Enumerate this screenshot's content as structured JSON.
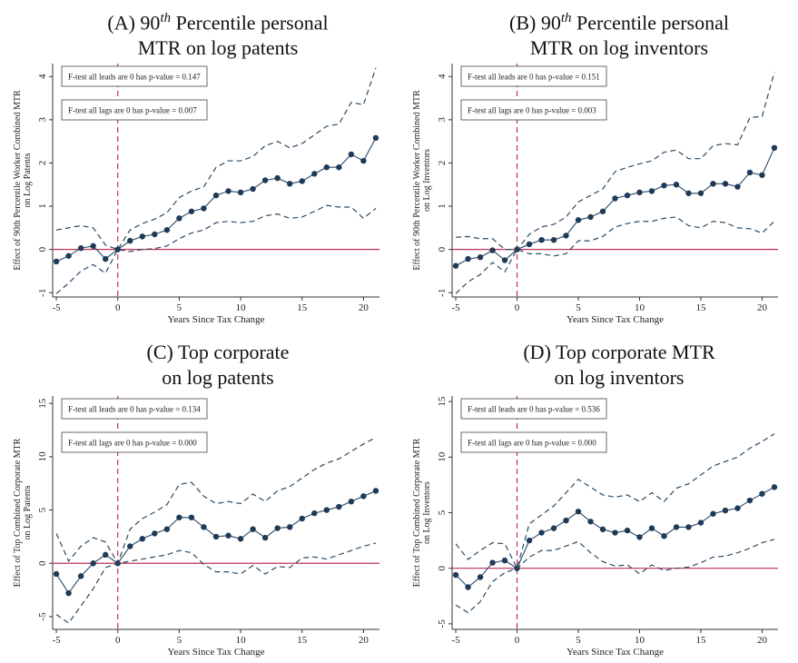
{
  "chart_data": [
    {
      "type": "line",
      "title_prefix": "(A)  90",
      "title_sup": "th",
      "title_rest": " Percentile personal",
      "title_line2": "MTR on log patents",
      "ylabel_lines": [
        "Effect of 90th Percentile Worker Combined MTR",
        "on Log Patents"
      ],
      "xlabel": "Years Since Tax Change",
      "xlim": [
        -5.3,
        21.3
      ],
      "ylim": [
        -1.1,
        4.3
      ],
      "xticks": [
        -5,
        0,
        5,
        10,
        15,
        20
      ],
      "yticks": [
        -1,
        0,
        1,
        2,
        3,
        4
      ],
      "ftests": [
        "F-test all leads are 0 has p-value = 0.147",
        "F-test all lags are 0 has p-value = 0.007"
      ],
      "x": [
        -5,
        -4,
        -3,
        -2,
        -1,
        0,
        1,
        2,
        3,
        4,
        5,
        6,
        7,
        8,
        9,
        10,
        11,
        12,
        13,
        14,
        15,
        16,
        17,
        18,
        19,
        20,
        21
      ],
      "series": [
        {
          "role": "estimate",
          "values": [
            -0.28,
            -0.15,
            0.03,
            0.08,
            -0.22,
            0.0,
            0.2,
            0.3,
            0.35,
            0.45,
            0.72,
            0.88,
            0.95,
            1.25,
            1.35,
            1.32,
            1.4,
            1.6,
            1.65,
            1.52,
            1.58,
            1.75,
            1.9,
            1.9,
            2.2,
            2.05,
            2.58
          ]
        },
        {
          "role": "upper",
          "values": [
            0.45,
            0.5,
            0.55,
            0.5,
            0.1,
            0.0,
            0.45,
            0.6,
            0.7,
            0.85,
            1.2,
            1.35,
            1.45,
            1.9,
            2.05,
            2.05,
            2.15,
            2.4,
            2.5,
            2.35,
            2.45,
            2.65,
            2.85,
            2.9,
            3.4,
            3.35,
            4.2
          ]
        },
        {
          "role": "lower",
          "values": [
            -1.02,
            -0.78,
            -0.5,
            -0.35,
            -0.55,
            0.0,
            -0.05,
            0.0,
            0.02,
            0.08,
            0.25,
            0.38,
            0.45,
            0.62,
            0.65,
            0.62,
            0.65,
            0.78,
            0.82,
            0.72,
            0.75,
            0.88,
            1.02,
            0.98,
            0.98,
            0.72,
            0.95
          ]
        }
      ]
    },
    {
      "type": "line",
      "title_prefix": "(B)  90",
      "title_sup": "th",
      "title_rest": " Percentile personal",
      "title_line2": "MTR on log inventors",
      "ylabel_lines": [
        "Effect of 90th Percentile Worker Combined MTR",
        "on Log Inventors"
      ],
      "xlabel": "Years Since Tax Change",
      "xlim": [
        -5.3,
        21.3
      ],
      "ylim": [
        -1.1,
        4.3
      ],
      "xticks": [
        -5,
        0,
        5,
        10,
        15,
        20
      ],
      "yticks": [
        -1,
        0,
        1,
        2,
        3,
        4
      ],
      "ftests": [
        "F-test all leads are 0 has p-value = 0.151",
        "F-test all lags are 0 has p-value = 0.003"
      ],
      "x": [
        -5,
        -4,
        -3,
        -2,
        -1,
        0,
        1,
        2,
        3,
        4,
        5,
        6,
        7,
        8,
        9,
        10,
        11,
        12,
        13,
        14,
        15,
        16,
        17,
        18,
        19,
        20,
        21
      ],
      "series": [
        {
          "role": "estimate",
          "values": [
            -0.38,
            -0.22,
            -0.18,
            -0.02,
            -0.25,
            0.0,
            0.12,
            0.22,
            0.22,
            0.32,
            0.68,
            0.75,
            0.88,
            1.18,
            1.25,
            1.32,
            1.35,
            1.48,
            1.5,
            1.3,
            1.3,
            1.52,
            1.52,
            1.45,
            1.78,
            1.72,
            2.35
          ]
        },
        {
          "role": "upper",
          "values": [
            0.28,
            0.3,
            0.25,
            0.25,
            0.0,
            0.0,
            0.35,
            0.52,
            0.58,
            0.75,
            1.1,
            1.25,
            1.4,
            1.8,
            1.9,
            1.98,
            2.05,
            2.25,
            2.3,
            2.1,
            2.1,
            2.4,
            2.45,
            2.42,
            3.05,
            3.08,
            4.1
          ]
        },
        {
          "role": "lower",
          "values": [
            -1.02,
            -0.75,
            -0.58,
            -0.3,
            -0.52,
            0.0,
            -0.1,
            -0.1,
            -0.15,
            -0.1,
            0.2,
            0.2,
            0.3,
            0.52,
            0.6,
            0.65,
            0.65,
            0.72,
            0.75,
            0.55,
            0.5,
            0.65,
            0.62,
            0.5,
            0.48,
            0.38,
            0.65
          ]
        }
      ]
    },
    {
      "type": "line",
      "title_prefix": "(C)  Top corporate",
      "title_sup": "",
      "title_rest": "",
      "title_line2": "on log patents",
      "ylabel_lines": [
        "Effect of Top Combined Corporate MTR",
        "on Log Patents"
      ],
      "xlabel": "Years Since Tax Change",
      "xlim": [
        -5.3,
        21.3
      ],
      "ylim": [
        -6.2,
        15.7
      ],
      "xticks": [
        -5,
        0,
        5,
        10,
        15,
        20
      ],
      "yticks": [
        -5,
        0,
        5,
        10,
        15
      ],
      "ftests": [
        "F-test all leads are 0 has p-value = 0.134",
        "F-test all lags are 0 has p-value = 0.000"
      ],
      "x": [
        -5,
        -4,
        -3,
        -2,
        -1,
        0,
        1,
        2,
        3,
        4,
        5,
        6,
        7,
        8,
        9,
        10,
        11,
        12,
        13,
        14,
        15,
        16,
        17,
        18,
        19,
        20,
        21
      ],
      "series": [
        {
          "role": "estimate",
          "values": [
            -1.0,
            -2.8,
            -1.2,
            0.0,
            0.8,
            0.0,
            1.6,
            2.3,
            2.8,
            3.2,
            4.3,
            4.3,
            3.4,
            2.5,
            2.6,
            2.3,
            3.2,
            2.4,
            3.3,
            3.4,
            4.2,
            4.7,
            5.0,
            5.3,
            5.8,
            6.3,
            6.8
          ]
        },
        {
          "role": "upper",
          "values": [
            2.8,
            0.2,
            1.6,
            2.4,
            2.0,
            0.0,
            3.2,
            4.2,
            4.8,
            5.5,
            7.4,
            7.6,
            6.3,
            5.6,
            5.8,
            5.6,
            6.5,
            5.8,
            6.8,
            7.2,
            8.0,
            8.8,
            9.4,
            9.8,
            10.5,
            11.2,
            11.8
          ]
        },
        {
          "role": "lower",
          "values": [
            -4.8,
            -5.6,
            -4.0,
            -2.4,
            -0.4,
            0.0,
            0.2,
            0.4,
            0.6,
            0.8,
            1.2,
            1.0,
            -0.1,
            -0.8,
            -0.8,
            -1.0,
            -0.2,
            -1.0,
            -0.3,
            -0.4,
            0.5,
            0.6,
            0.4,
            0.8,
            1.2,
            1.6,
            1.9
          ]
        }
      ]
    },
    {
      "type": "line",
      "title_prefix": "(D)  Top corporate MTR",
      "title_sup": "",
      "title_rest": "",
      "title_line2": "on log inventors",
      "ylabel_lines": [
        "Effect of Top Combined Corporate MTR",
        "on Log Inventors"
      ],
      "xlabel": "Years Since Tax Change",
      "xlim": [
        -5.3,
        21.3
      ],
      "ylim": [
        -5.5,
        15.5
      ],
      "xticks": [
        -5,
        0,
        5,
        10,
        15,
        20
      ],
      "yticks": [
        -5,
        0,
        5,
        10,
        15
      ],
      "ftests": [
        "F-test all leads are 0 has p-value = 0.536",
        "F-test all lags are 0 has p-value = 0.000"
      ],
      "x": [
        -5,
        -4,
        -3,
        -2,
        -1,
        0,
        1,
        2,
        3,
        4,
        5,
        6,
        7,
        8,
        9,
        10,
        11,
        12,
        13,
        14,
        15,
        16,
        17,
        18,
        19,
        20,
        21
      ],
      "series": [
        {
          "role": "estimate",
          "values": [
            -0.6,
            -1.7,
            -0.8,
            0.5,
            0.7,
            0.0,
            2.5,
            3.2,
            3.6,
            4.3,
            5.1,
            4.2,
            3.5,
            3.2,
            3.4,
            2.8,
            3.6,
            2.9,
            3.7,
            3.7,
            4.1,
            4.9,
            5.2,
            5.4,
            6.1,
            6.7,
            7.3
          ]
        },
        {
          "role": "upper",
          "values": [
            2.2,
            0.8,
            1.6,
            2.3,
            2.2,
            0.0,
            4.0,
            4.8,
            5.6,
            6.8,
            8.0,
            7.3,
            6.6,
            6.4,
            6.6,
            6.0,
            6.8,
            6.0,
            7.2,
            7.6,
            8.4,
            9.2,
            9.6,
            10.0,
            10.8,
            11.4,
            12.1
          ]
        },
        {
          "role": "lower",
          "values": [
            -3.3,
            -4.0,
            -3.0,
            -1.2,
            -0.4,
            0.0,
            1.0,
            1.6,
            1.6,
            2.0,
            2.4,
            1.4,
            0.6,
            0.2,
            0.3,
            -0.5,
            0.3,
            -0.2,
            0.0,
            0.1,
            0.5,
            1.0,
            1.1,
            1.4,
            1.8,
            2.3,
            2.6
          ]
        }
      ]
    }
  ]
}
